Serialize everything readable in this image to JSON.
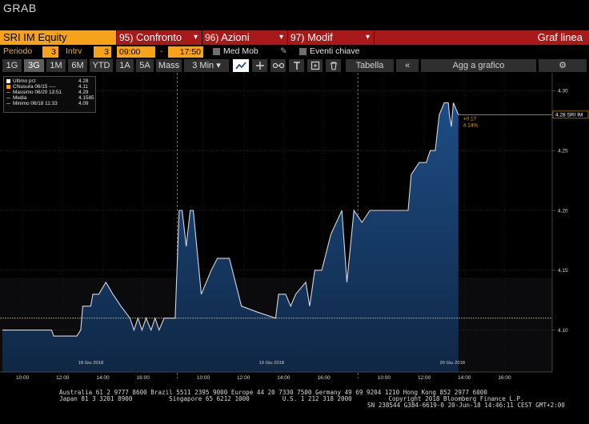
{
  "window": {
    "title": "GRAB"
  },
  "toolbar": {
    "ticker": "SRI IM Equity",
    "buttons": [
      {
        "num": "95)",
        "label": "Confronto",
        "dropdown": "▾"
      },
      {
        "num": "96)",
        "label": "Azioni",
        "dropdown": "▾"
      },
      {
        "num": "97)",
        "label": "Modif",
        "dropdown": "▾"
      }
    ],
    "chart_type": "Graf linea"
  },
  "settings": {
    "period_label": "Periodo",
    "period_value": "3",
    "interval_label": "Intrv",
    "interval_value": "3",
    "start_time": "09:00",
    "dash": "-",
    "end_time": "17:50",
    "moving_avg": "Med Mob",
    "key_events": "Eventi chiave"
  },
  "ranges": {
    "tabs": [
      "1G",
      "3G",
      "1M",
      "6M",
      "YTD",
      "1A",
      "5A",
      "Mass",
      "3 Min ▾"
    ],
    "active": "3G"
  },
  "tools": {
    "table": "Tabella",
    "collapse": "«",
    "add_to_chart": "Agg a grafico",
    "gear": "⚙"
  },
  "legend": [
    {
      "label": "Ultimo prz",
      "value": "4.28",
      "color": "#ffffff"
    },
    {
      "label": "Chiusura 06/15 ----",
      "value": "4.11",
      "color": "#f7a21b"
    },
    {
      "label": "Massimo 06/20 13:51",
      "value": "4.29",
      "color": "#888888"
    },
    {
      "label": "Media",
      "value": "4.1585",
      "color": "#888888"
    },
    {
      "label": "Minimo 06/18 11:33",
      "value": "4.09",
      "color": "#888888"
    }
  ],
  "chart_data": {
    "type": "area",
    "ylim": [
      4.065,
      4.315
    ],
    "yticks": [
      4.1,
      4.15,
      4.2,
      4.25,
      4.3
    ],
    "ytick_labels": [
      "4.10",
      "4.15",
      "4.20",
      "4.25",
      "4.30"
    ],
    "xticks": [
      {
        "t": 1,
        "label": "10:00"
      },
      {
        "t": 3,
        "label": "12:00"
      },
      {
        "t": 5,
        "label": "14:00"
      },
      {
        "t": 7,
        "label": "16:00"
      },
      {
        "t": 10,
        "label": "10:00"
      },
      {
        "t": 12,
        "label": "12:00"
      },
      {
        "t": 14,
        "label": "14:00"
      },
      {
        "t": 16,
        "label": "16:00"
      },
      {
        "t": 19,
        "label": "10:00"
      },
      {
        "t": 21,
        "label": "12:00"
      },
      {
        "t": 23,
        "label": "14:00"
      },
      {
        "t": 25,
        "label": "16:00"
      }
    ],
    "day_labels": [
      {
        "t": 4.4,
        "label": "18 Giu 2018"
      },
      {
        "t": 13.4,
        "label": "19 Giu 2018"
      },
      {
        "t": 22.4,
        "label": "20 Giu 2018"
      }
    ],
    "day_separators": [
      8.7,
      17.7
    ],
    "previous_close": 4.11,
    "last_price_label": "4.28 SRI IM",
    "change_label": "+0.17",
    "change_pct_label": "4.14%",
    "points": [
      [
        0,
        4.1
      ],
      [
        2.45,
        4.1
      ],
      [
        2.55,
        4.095
      ],
      [
        3.7,
        4.095
      ],
      [
        3.9,
        4.1
      ],
      [
        4.0,
        4.12
      ],
      [
        4.4,
        4.12
      ],
      [
        4.5,
        4.13
      ],
      [
        4.8,
        4.13
      ],
      [
        5.15,
        4.14
      ],
      [
        5.5,
        4.13
      ],
      [
        5.9,
        4.12
      ],
      [
        6.35,
        4.11
      ],
      [
        6.55,
        4.1
      ],
      [
        6.75,
        4.11
      ],
      [
        6.95,
        4.1
      ],
      [
        7.15,
        4.11
      ],
      [
        7.4,
        4.1
      ],
      [
        7.6,
        4.11
      ],
      [
        7.8,
        4.1
      ],
      [
        8.05,
        4.11
      ],
      [
        8.35,
        4.11
      ],
      [
        8.6,
        4.11
      ],
      [
        8.8,
        4.2
      ],
      [
        8.95,
        4.2
      ],
      [
        9.15,
        4.17
      ],
      [
        9.35,
        4.2
      ],
      [
        9.5,
        4.2
      ],
      [
        9.9,
        4.13
      ],
      [
        10.4,
        4.15
      ],
      [
        10.7,
        4.16
      ],
      [
        11.3,
        4.16
      ],
      [
        11.9,
        4.12
      ],
      [
        12.7,
        4.115
      ],
      [
        13.6,
        4.11
      ],
      [
        13.75,
        4.13
      ],
      [
        14.1,
        4.13
      ],
      [
        14.35,
        4.12
      ],
      [
        14.6,
        4.13
      ],
      [
        15.1,
        4.14
      ],
      [
        15.3,
        4.12
      ],
      [
        15.55,
        4.15
      ],
      [
        15.9,
        4.15
      ],
      [
        16.35,
        4.18
      ],
      [
        16.9,
        4.2
      ],
      [
        17.15,
        4.14
      ],
      [
        17.5,
        4.2
      ],
      [
        17.9,
        4.19
      ],
      [
        18.3,
        4.2
      ],
      [
        20.2,
        4.2
      ],
      [
        20.35,
        4.23
      ],
      [
        20.75,
        4.24
      ],
      [
        21.1,
        4.24
      ],
      [
        21.3,
        4.25
      ],
      [
        21.55,
        4.25
      ],
      [
        21.75,
        4.28
      ],
      [
        22.0,
        4.29
      ],
      [
        22.2,
        4.29
      ],
      [
        22.25,
        4.28
      ],
      [
        22.35,
        4.27
      ],
      [
        22.45,
        4.29
      ],
      [
        22.7,
        4.28
      ]
    ]
  },
  "footer": {
    "line1": "Australia 61 2 9777 8600 Brazil 5511 2395 9000 Europe 44 20 7330 7500 Germany 49 69 9204 1210 Hong Kong 852 2977 6000",
    "line2": "Japan 81 3 3201 8900          Singapore 65 6212 1000         U.S. 1 212 318 2000          Copyright 2018 Bloomberg Finance L.P.",
    "line3": "SN 238544 G384-6619-0 20-Jun-18 14:46:11 CEST GMT+2:00"
  }
}
